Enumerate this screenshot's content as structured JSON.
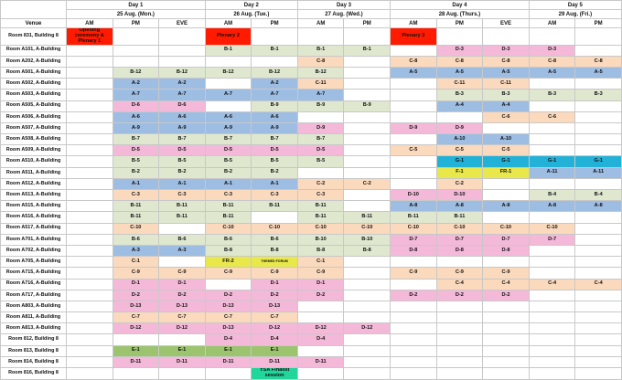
{
  "header": {
    "venue_label": "Venue",
    "days": [
      {
        "label": "Day 1",
        "date": "25 Aug. (Mon.)",
        "slots": [
          "AM",
          "PM",
          "EVE"
        ]
      },
      {
        "label": "Day 2",
        "date": "26 Aug. (Tue.)",
        "slots": [
          "AM",
          "PM"
        ]
      },
      {
        "label": "Day 3",
        "date": "27 Aug. (Wed.)",
        "slots": [
          "AM",
          "PM"
        ]
      },
      {
        "label": "Day 4",
        "date": "28 Aug. (Thurs.)",
        "slots": [
          "AM",
          "PM",
          "EVE"
        ]
      },
      {
        "label": "Day 5",
        "date": "29 Aug. (Fri.)",
        "slots": [
          "AM",
          "PM"
        ]
      }
    ]
  },
  "colors": {
    "A": "#9dbde3",
    "B": "#dfe8cf",
    "C": "#fbd9bd",
    "D": "#f4b9d8",
    "E": "#9cc46e",
    "F": "#e9e84a",
    "G": "#22b2d8",
    "T": "#e9e84a",
    "P": "#ff1a00",
    "O": "#ff1a00",
    "Y": "#20d69a"
  },
  "rows": [
    {
      "venue": "Room 831, Building 8",
      "cells": [
        "Opening ceremony & Plenary 1",
        "",
        "",
        "Plenary 2",
        "",
        "",
        "",
        "Plenary 3",
        "",
        "",
        "",
        ""
      ]
    },
    {
      "venue": "Room A101, A-Building",
      "cells": [
        "",
        "",
        "",
        "B-1",
        "B-1",
        "B-1",
        "B-1",
        "",
        "D-3",
        "D-3",
        "D-3",
        ""
      ]
    },
    {
      "venue": "Room A202, A-Building",
      "cells": [
        "",
        "",
        "",
        "",
        "",
        "C-8",
        "",
        "C-8",
        "C-8",
        "C-8",
        "C-8",
        "C-8"
      ]
    },
    {
      "venue": "Room A501, A-Building",
      "cells": [
        "",
        "B-12",
        "B-12",
        "B-12",
        "B-12",
        "B-12",
        "",
        "A-5",
        "A-5",
        "A-5",
        "A-5",
        "A-5"
      ]
    },
    {
      "venue": "Room A502, A-Building",
      "cells": [
        "",
        "A-2",
        "A-2",
        "",
        "A-2",
        "C-11",
        "",
        "",
        "C-11",
        "C-11",
        "",
        ""
      ]
    },
    {
      "venue": "Room A503, A-Building",
      "cells": [
        "",
        "A-7",
        "A-7",
        "A-7",
        "A-7",
        "A-7",
        "",
        "",
        "B-3",
        "B-3",
        "B-3",
        "B-3"
      ]
    },
    {
      "venue": "Room A505, A-Building",
      "cells": [
        "",
        "D-6",
        "D-6",
        "",
        "B-9",
        "B-9",
        "B-9",
        "",
        "A-4",
        "A-4",
        "",
        ""
      ]
    },
    {
      "venue": "Room A506, A-Building",
      "cells": [
        "",
        "A-6",
        "A-6",
        "A-6",
        "A-6",
        "",
        "",
        "",
        "",
        "C-6",
        "C-6",
        ""
      ]
    },
    {
      "venue": "Room A507, A-Building",
      "cells": [
        "",
        "A-9",
        "A-9",
        "A-9",
        "A-9",
        "D-9",
        "",
        "D-9",
        "D-9",
        "",
        "",
        ""
      ]
    },
    {
      "venue": "Room A508, A-Building",
      "cells": [
        "",
        "B-7",
        "B-7",
        "B-7",
        "B-7",
        "B-7",
        "",
        "",
        "A-10",
        "A-10",
        "",
        ""
      ]
    },
    {
      "venue": "Room A509, A-Building",
      "cells": [
        "",
        "D-5",
        "D-5",
        "D-5",
        "D-5",
        "D-5",
        "",
        "C-5",
        "C-5",
        "C-5",
        "",
        ""
      ]
    },
    {
      "venue": "Room A510, A-Building",
      "cells": [
        "",
        "B-5",
        "B-5",
        "B-5",
        "B-5",
        "B-5",
        "",
        "",
        "G-1",
        "G-1",
        "G-1",
        "G-1"
      ]
    },
    {
      "venue": "Room A511, A-Building",
      "cells": [
        "",
        "B-2",
        "B-2",
        "B-2",
        "B-2",
        "",
        "",
        "",
        "F-1",
        "FR-1",
        "A-11",
        "A-11"
      ]
    },
    {
      "venue": "Room A512, A-Building",
      "cells": [
        "",
        "A-1",
        "A-1",
        "A-1",
        "A-1",
        "C-2",
        "C-2",
        "",
        "C-2",
        "",
        "",
        ""
      ]
    },
    {
      "venue": "Room A513, A-Building",
      "cells": [
        "",
        "C-3",
        "C-3",
        "C-3",
        "C-3",
        "C-3",
        "",
        "D-10",
        "D-10",
        "",
        "B-4",
        "B-4"
      ]
    },
    {
      "venue": "Room A515, A-Building",
      "cells": [
        "",
        "B-11",
        "B-11",
        "B-11",
        "B-11",
        "B-11",
        "",
        "A-8",
        "A-8",
        "A-8",
        "A-8",
        "A-8"
      ]
    },
    {
      "venue": "Room A516, A-Building",
      "cells": [
        "",
        "B-11",
        "B-11",
        "B-11",
        "",
        "B-11",
        "B-11",
        "B-11",
        "B-11",
        "",
        "",
        ""
      ]
    },
    {
      "venue": "Room A517, A-Building",
      "cells": [
        "",
        "C-10",
        "",
        "C-10",
        "C-10",
        "C-10",
        "C-10",
        "C-10",
        "C-10",
        "C-10",
        "C-10",
        ""
      ]
    },
    {
      "venue": "Room A701, A-Building",
      "cells": [
        "",
        "B-6",
        "B-6",
        "B-6",
        "B-6",
        "B-10",
        "B-10",
        "D-7",
        "D-7",
        "D-7",
        "D-7",
        ""
      ]
    },
    {
      "venue": "Room A702, A-Building",
      "cells": [
        "",
        "A-3",
        "A-3",
        "B-8",
        "B-8",
        "B-8",
        "B-8",
        "D-8",
        "D-8",
        "D-8",
        "",
        ""
      ]
    },
    {
      "venue": "Room A705, A-Building",
      "cells": [
        "",
        "C-1",
        "",
        "FR-2",
        "THEMED FORUM",
        "C-1",
        "",
        "",
        "",
        "",
        "",
        ""
      ]
    },
    {
      "venue": "Room A715, A-Building",
      "cells": [
        "",
        "C-9",
        "C-9",
        "C-9",
        "C-9",
        "C-9",
        "",
        "C-9",
        "C-9",
        "C-9",
        "",
        ""
      ]
    },
    {
      "venue": "Room A716, A-Building",
      "cells": [
        "",
        "D-1",
        "D-1",
        "",
        "D-1",
        "D-1",
        "",
        "",
        "C-4",
        "C-4",
        "C-4",
        "C-4"
      ]
    },
    {
      "venue": "Room A717, A-Building",
      "cells": [
        "",
        "D-2",
        "D-2",
        "D-2",
        "D-2",
        "D-2",
        "",
        "D-2",
        "D-2",
        "D-2",
        "",
        ""
      ]
    },
    {
      "venue": "Room A803, A-Building",
      "cells": [
        "",
        "D-13",
        "D-13",
        "D-13",
        "D-13",
        "",
        "",
        "",
        "",
        "",
        "",
        ""
      ]
    },
    {
      "venue": "Room A811, A-Building",
      "cells": [
        "",
        "C-7",
        "C-7",
        "C-7",
        "C-7",
        "",
        "",
        "",
        "",
        "",
        "",
        ""
      ]
    },
    {
      "venue": "Room A813, A-Building",
      "cells": [
        "",
        "D-12",
        "D-12",
        "D-13",
        "D-12",
        "D-12",
        "D-12",
        "",
        "",
        "",
        "",
        ""
      ]
    },
    {
      "venue": "Room 812, Building 8",
      "cells": [
        "",
        "",
        "",
        "D-4",
        "D-4",
        "D-4",
        "",
        "",
        "",
        "",
        "",
        ""
      ]
    },
    {
      "venue": "Room 813, Building 8",
      "cells": [
        "",
        "E-1",
        "E-1",
        "E-1",
        "E-1",
        "",
        "",
        "",
        "",
        "",
        "",
        ""
      ]
    },
    {
      "venue": "Room 814, Building 8",
      "cells": [
        "",
        "D-11",
        "D-11",
        "D-11",
        "D-11",
        "D-11",
        "",
        "",
        "",
        "",
        "",
        ""
      ]
    },
    {
      "venue": "Room 816, Building 8",
      "cells": [
        "",
        "",
        "",
        "",
        "YSA Finalist session",
        "",
        "",
        "",
        "",
        "",
        "",
        ""
      ]
    }
  ]
}
